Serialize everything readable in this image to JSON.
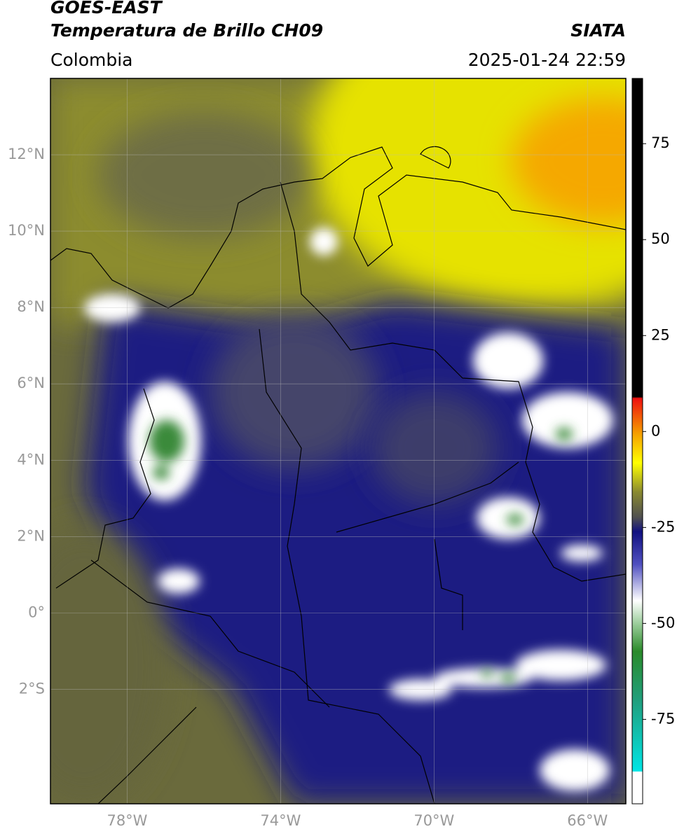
{
  "header": {
    "title": "GOES-EAST",
    "subtitle": "Temperatura de Brillo CH09",
    "source": "SIATA",
    "region": "Colombia",
    "datetime": "2025-01-24 22:59"
  },
  "map": {
    "lon_range": [
      -80,
      -65
    ],
    "lat_range": [
      -5,
      14
    ],
    "lat_ticks": [
      {
        "value": 12,
        "label": "12°N"
      },
      {
        "value": 10,
        "label": "10°N"
      },
      {
        "value": 8,
        "label": "8°N"
      },
      {
        "value": 6,
        "label": "6°N"
      },
      {
        "value": 4,
        "label": "4°N"
      },
      {
        "value": 2,
        "label": "2°N"
      },
      {
        "value": 0,
        "label": "0°"
      },
      {
        "value": -2,
        "label": "2°S"
      }
    ],
    "lon_ticks": [
      {
        "value": -78,
        "label": "78°W"
      },
      {
        "value": -74,
        "label": "74°W"
      },
      {
        "value": -70,
        "label": "70°W"
      },
      {
        "value": -66,
        "label": "66°W"
      }
    ]
  },
  "colorbar": {
    "range": [
      -97,
      92
    ],
    "ticks": [
      75,
      50,
      25,
      0,
      -25,
      -50,
      -75
    ]
  }
}
